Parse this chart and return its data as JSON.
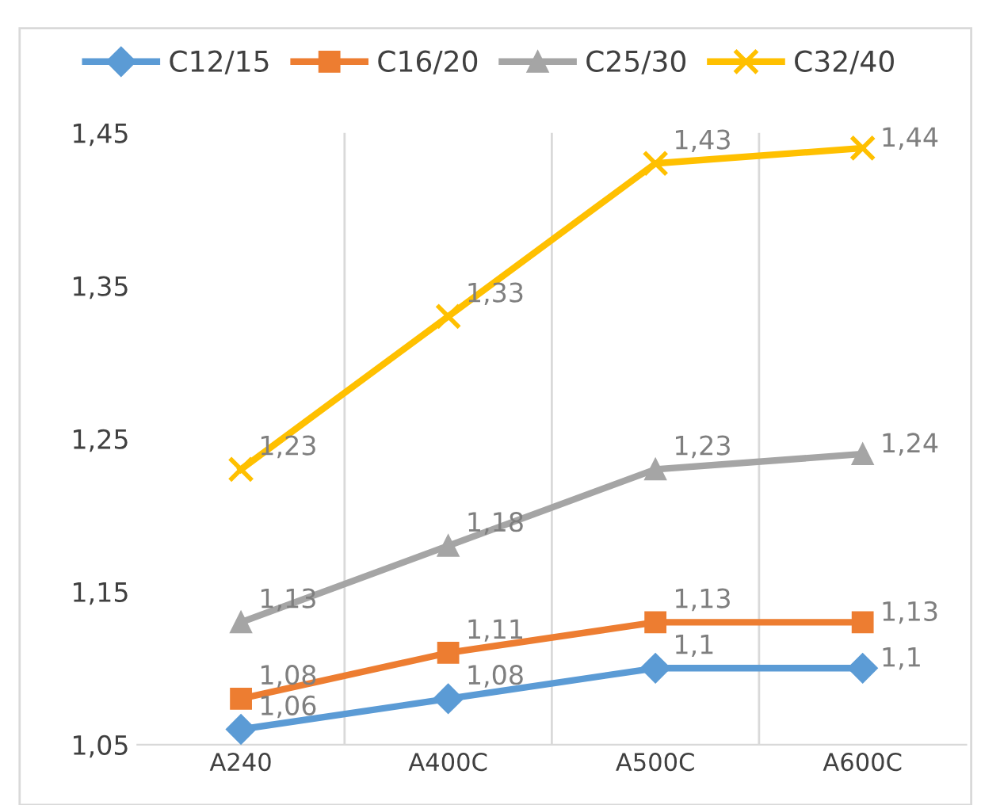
{
  "chart_data": {
    "type": "line",
    "categories": [
      "A240",
      "A400C",
      "A500C",
      "A600C"
    ],
    "series": [
      {
        "name": "C12/15",
        "color": "#5b9bd5",
        "marker": "diamond",
        "values": [
          1.06,
          1.08,
          1.1,
          1.1
        ],
        "value_labels": [
          "1,06",
          "1,08",
          "1,1",
          "1,1"
        ]
      },
      {
        "name": "C16/20",
        "color": "#ed7d31",
        "marker": "square",
        "values": [
          1.08,
          1.11,
          1.13,
          1.13
        ],
        "value_labels": [
          "1,08",
          "1,11",
          "1,13",
          "1,13"
        ]
      },
      {
        "name": "C25/30",
        "color": "#a5a5a5",
        "marker": "triangle",
        "values": [
          1.13,
          1.18,
          1.23,
          1.24
        ],
        "value_labels": [
          "1,13",
          "1,18",
          "1,23",
          "1,24"
        ]
      },
      {
        "name": "C32/40",
        "color": "#ffc000",
        "marker": "cross",
        "values": [
          1.23,
          1.33,
          1.43,
          1.44
        ],
        "value_labels": [
          "1,23",
          "1,33",
          "1,43",
          "1,44"
        ]
      }
    ],
    "ylim": [
      1.05,
      1.45
    ],
    "yticks": [
      {
        "value": 1.05,
        "label": "1,05"
      },
      {
        "value": 1.15,
        "label": "1,15"
      },
      {
        "value": 1.25,
        "label": "1,25"
      },
      {
        "value": 1.35,
        "label": "1,35"
      },
      {
        "value": 1.45,
        "label": "1,45"
      }
    ],
    "grid": "x",
    "legend": "top",
    "line_style": "solid"
  }
}
